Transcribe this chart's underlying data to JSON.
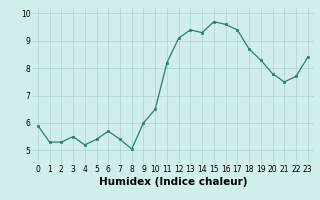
{
  "x": [
    0,
    1,
    2,
    3,
    4,
    5,
    6,
    7,
    8,
    9,
    10,
    11,
    12,
    13,
    14,
    15,
    16,
    17,
    18,
    19,
    20,
    21,
    22,
    23
  ],
  "y": [
    5.9,
    5.3,
    5.3,
    5.5,
    5.2,
    5.4,
    5.7,
    5.4,
    5.05,
    6.0,
    6.5,
    8.2,
    9.1,
    9.4,
    9.3,
    9.7,
    9.6,
    9.4,
    8.7,
    8.3,
    7.8,
    7.5,
    7.7,
    8.4
  ],
  "xlabel": "Humidex (Indice chaleur)",
  "xlim": [
    -0.5,
    23.5
  ],
  "ylim": [
    4.5,
    10.2
  ],
  "yticks": [
    5,
    6,
    7,
    8,
    9,
    10
  ],
  "xticks": [
    0,
    1,
    2,
    3,
    4,
    5,
    6,
    7,
    8,
    9,
    10,
    11,
    12,
    13,
    14,
    15,
    16,
    17,
    18,
    19,
    20,
    21,
    22,
    23
  ],
  "line_color": "#2e7d6e",
  "marker_color": "#2e7d6e",
  "bg_color": "#d0eeeb",
  "grid_color": "#b0d8d4",
  "tick_fontsize": 5.5,
  "xlabel_fontsize": 7.5
}
